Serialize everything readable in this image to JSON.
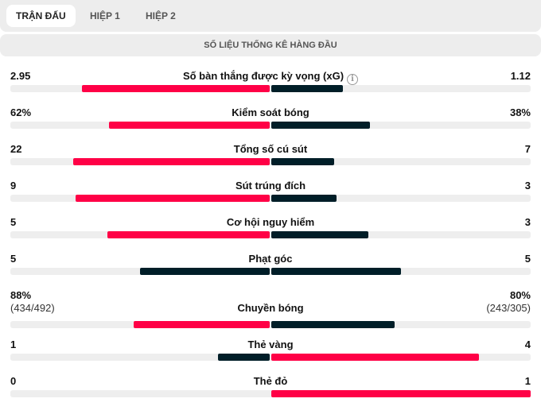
{
  "tabs": [
    {
      "label": "TRẬN ĐẤU",
      "active": true
    },
    {
      "label": "HIỆP 1",
      "active": false
    },
    {
      "label": "HIỆP 2",
      "active": false
    }
  ],
  "section_title": "SỐ LIỆU THỐNG KÊ HÀNG ĐẦU",
  "colors": {
    "higher": "#ff0046",
    "lower": "#001e28",
    "track": "#eeeeee"
  },
  "stats": [
    {
      "label": "Số bàn thắng được kỳ vọng (xG)",
      "home": "2.95",
      "away": "1.12",
      "home_value": 2.95,
      "away_value": 1.12,
      "info_icon": "info-icon"
    },
    {
      "label": "Kiểm soát bóng",
      "home": "62%",
      "away": "38%",
      "home_value": 62,
      "away_value": 38
    },
    {
      "label": "Tổng số cú sút",
      "home": "22",
      "away": "7",
      "home_value": 22,
      "away_value": 7
    },
    {
      "label": "Sút trúng đích",
      "home": "9",
      "away": "3",
      "home_value": 9,
      "away_value": 3
    },
    {
      "label": "Cơ hội nguy hiểm",
      "home": "5",
      "away": "3",
      "home_value": 5,
      "away_value": 3
    },
    {
      "label": "Phạt góc",
      "home": "5",
      "away": "5",
      "home_value": 5,
      "away_value": 5
    },
    {
      "label": "Chuyền bóng",
      "home": "88%",
      "away": "80%",
      "home_sub": "(434/492)",
      "away_sub": "(243/305)",
      "home_value": 88,
      "away_value": 80
    },
    {
      "label": "Thẻ vàng",
      "home": "1",
      "away": "4",
      "home_value": 1,
      "away_value": 4
    },
    {
      "label": "Thẻ đỏ",
      "home": "0",
      "away": "1",
      "home_value": 0,
      "away_value": 1
    }
  ]
}
